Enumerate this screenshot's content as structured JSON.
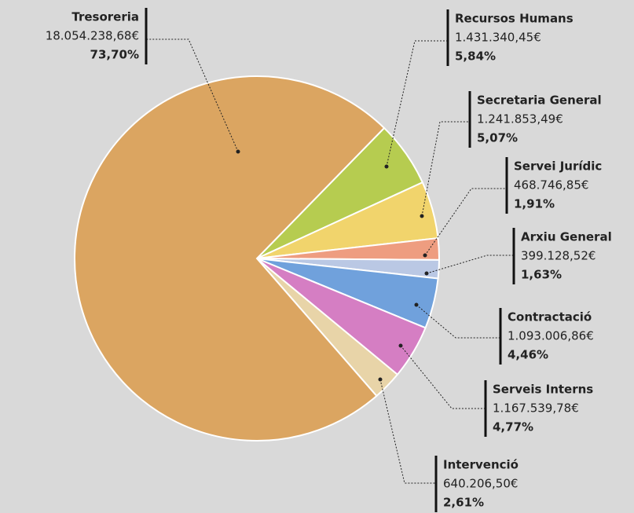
{
  "chart_data": {
    "type": "pie",
    "categories": [
      "Recursos Humans",
      "Secretaria General",
      "Servei Jurídic",
      "Arxiu General",
      "Contractació",
      "Serveis Interns",
      "Intervenció",
      "Tresoreria"
    ],
    "amount_labels": [
      "1.431.340,45€",
      "1.241.853,49€",
      "468.746,85€",
      "399.128,52€",
      "1.093.006,86€",
      "1.167.539,78€",
      "640.206,50€",
      "18.054.238,68€"
    ],
    "values": [
      5.84,
      5.07,
      1.91,
      1.63,
      4.46,
      4.77,
      2.61,
      73.7
    ],
    "value_labels": [
      "5,84%",
      "5,07%",
      "1,91%",
      "1,63%",
      "4,46%",
      "4,77%",
      "2,61%",
      "73,70%"
    ],
    "colors": [
      "#b6cc50",
      "#f1d46c",
      "#ee9d80",
      "#bac8e4",
      "#70a1dc",
      "#d57ec3",
      "#e8d4a8",
      "#dba561"
    ]
  }
}
